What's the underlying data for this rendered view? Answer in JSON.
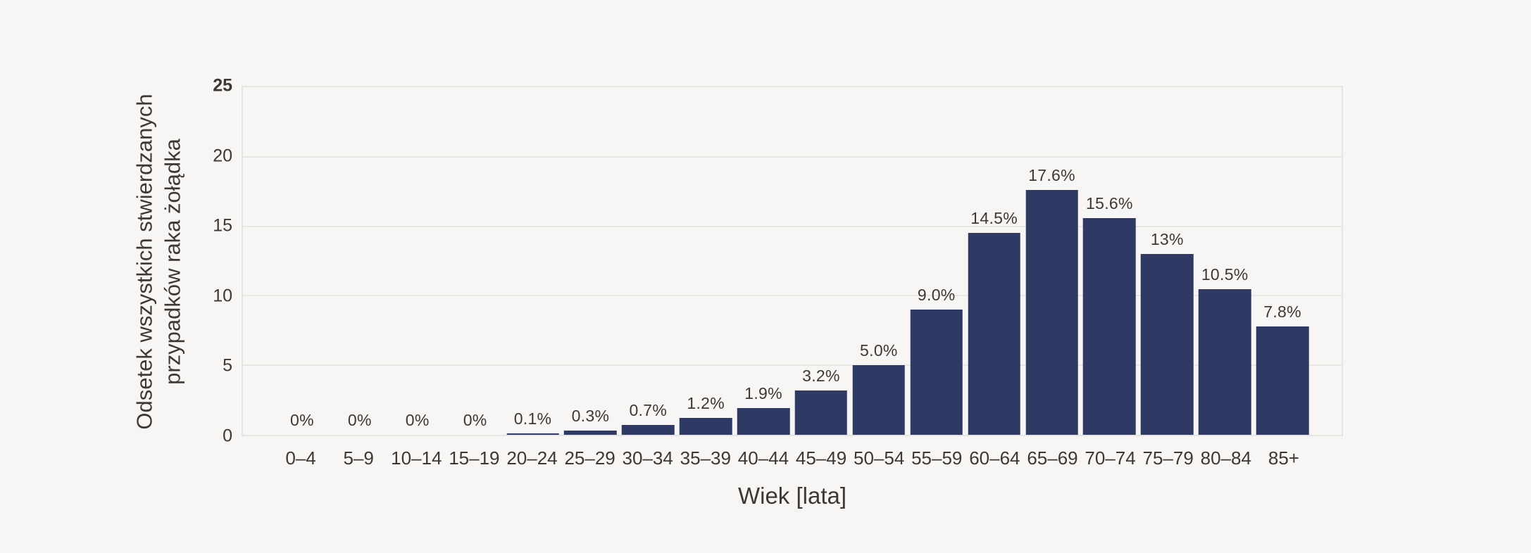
{
  "chart_data": {
    "type": "bar",
    "title": "",
    "xlabel": "Wiek [lata]",
    "ylabel_lines": [
      "Odsetek wszystkich stwierdzanych",
      "przypadków raka żołądka"
    ],
    "categories": [
      "0–4",
      "5–9",
      "10–14",
      "15–19",
      "20–24",
      "25–29",
      "30–34",
      "35–39",
      "40–44",
      "45–49",
      "50–54",
      "55–59",
      "60–64",
      "65–69",
      "70–74",
      "75–79",
      "80–84",
      "85+"
    ],
    "values": [
      0,
      0,
      0,
      0,
      0.1,
      0.3,
      0.7,
      1.2,
      1.9,
      3.2,
      5.0,
      9.0,
      14.5,
      17.6,
      15.6,
      13,
      10.5,
      7.8
    ],
    "value_labels": [
      "0%",
      "0%",
      "0%",
      "0%",
      "0.1%",
      "0.3%",
      "0.7%",
      "1.2%",
      "1.9%",
      "3.2%",
      "5.0%",
      "9.0%",
      "14.5%",
      "17.6%",
      "15.6%",
      "13%",
      "10.5%",
      "7.8%"
    ],
    "y_ticks": [
      0,
      5,
      10,
      15,
      20,
      25
    ],
    "ylim": [
      0,
      25
    ],
    "grid": true,
    "legend": "none",
    "colors": {
      "bar": "#2f3a64",
      "background": "#f7f6f4",
      "gridline": "#e9e7e4",
      "plot_border": "#e6e4e1",
      "text": "#3e3833"
    }
  }
}
